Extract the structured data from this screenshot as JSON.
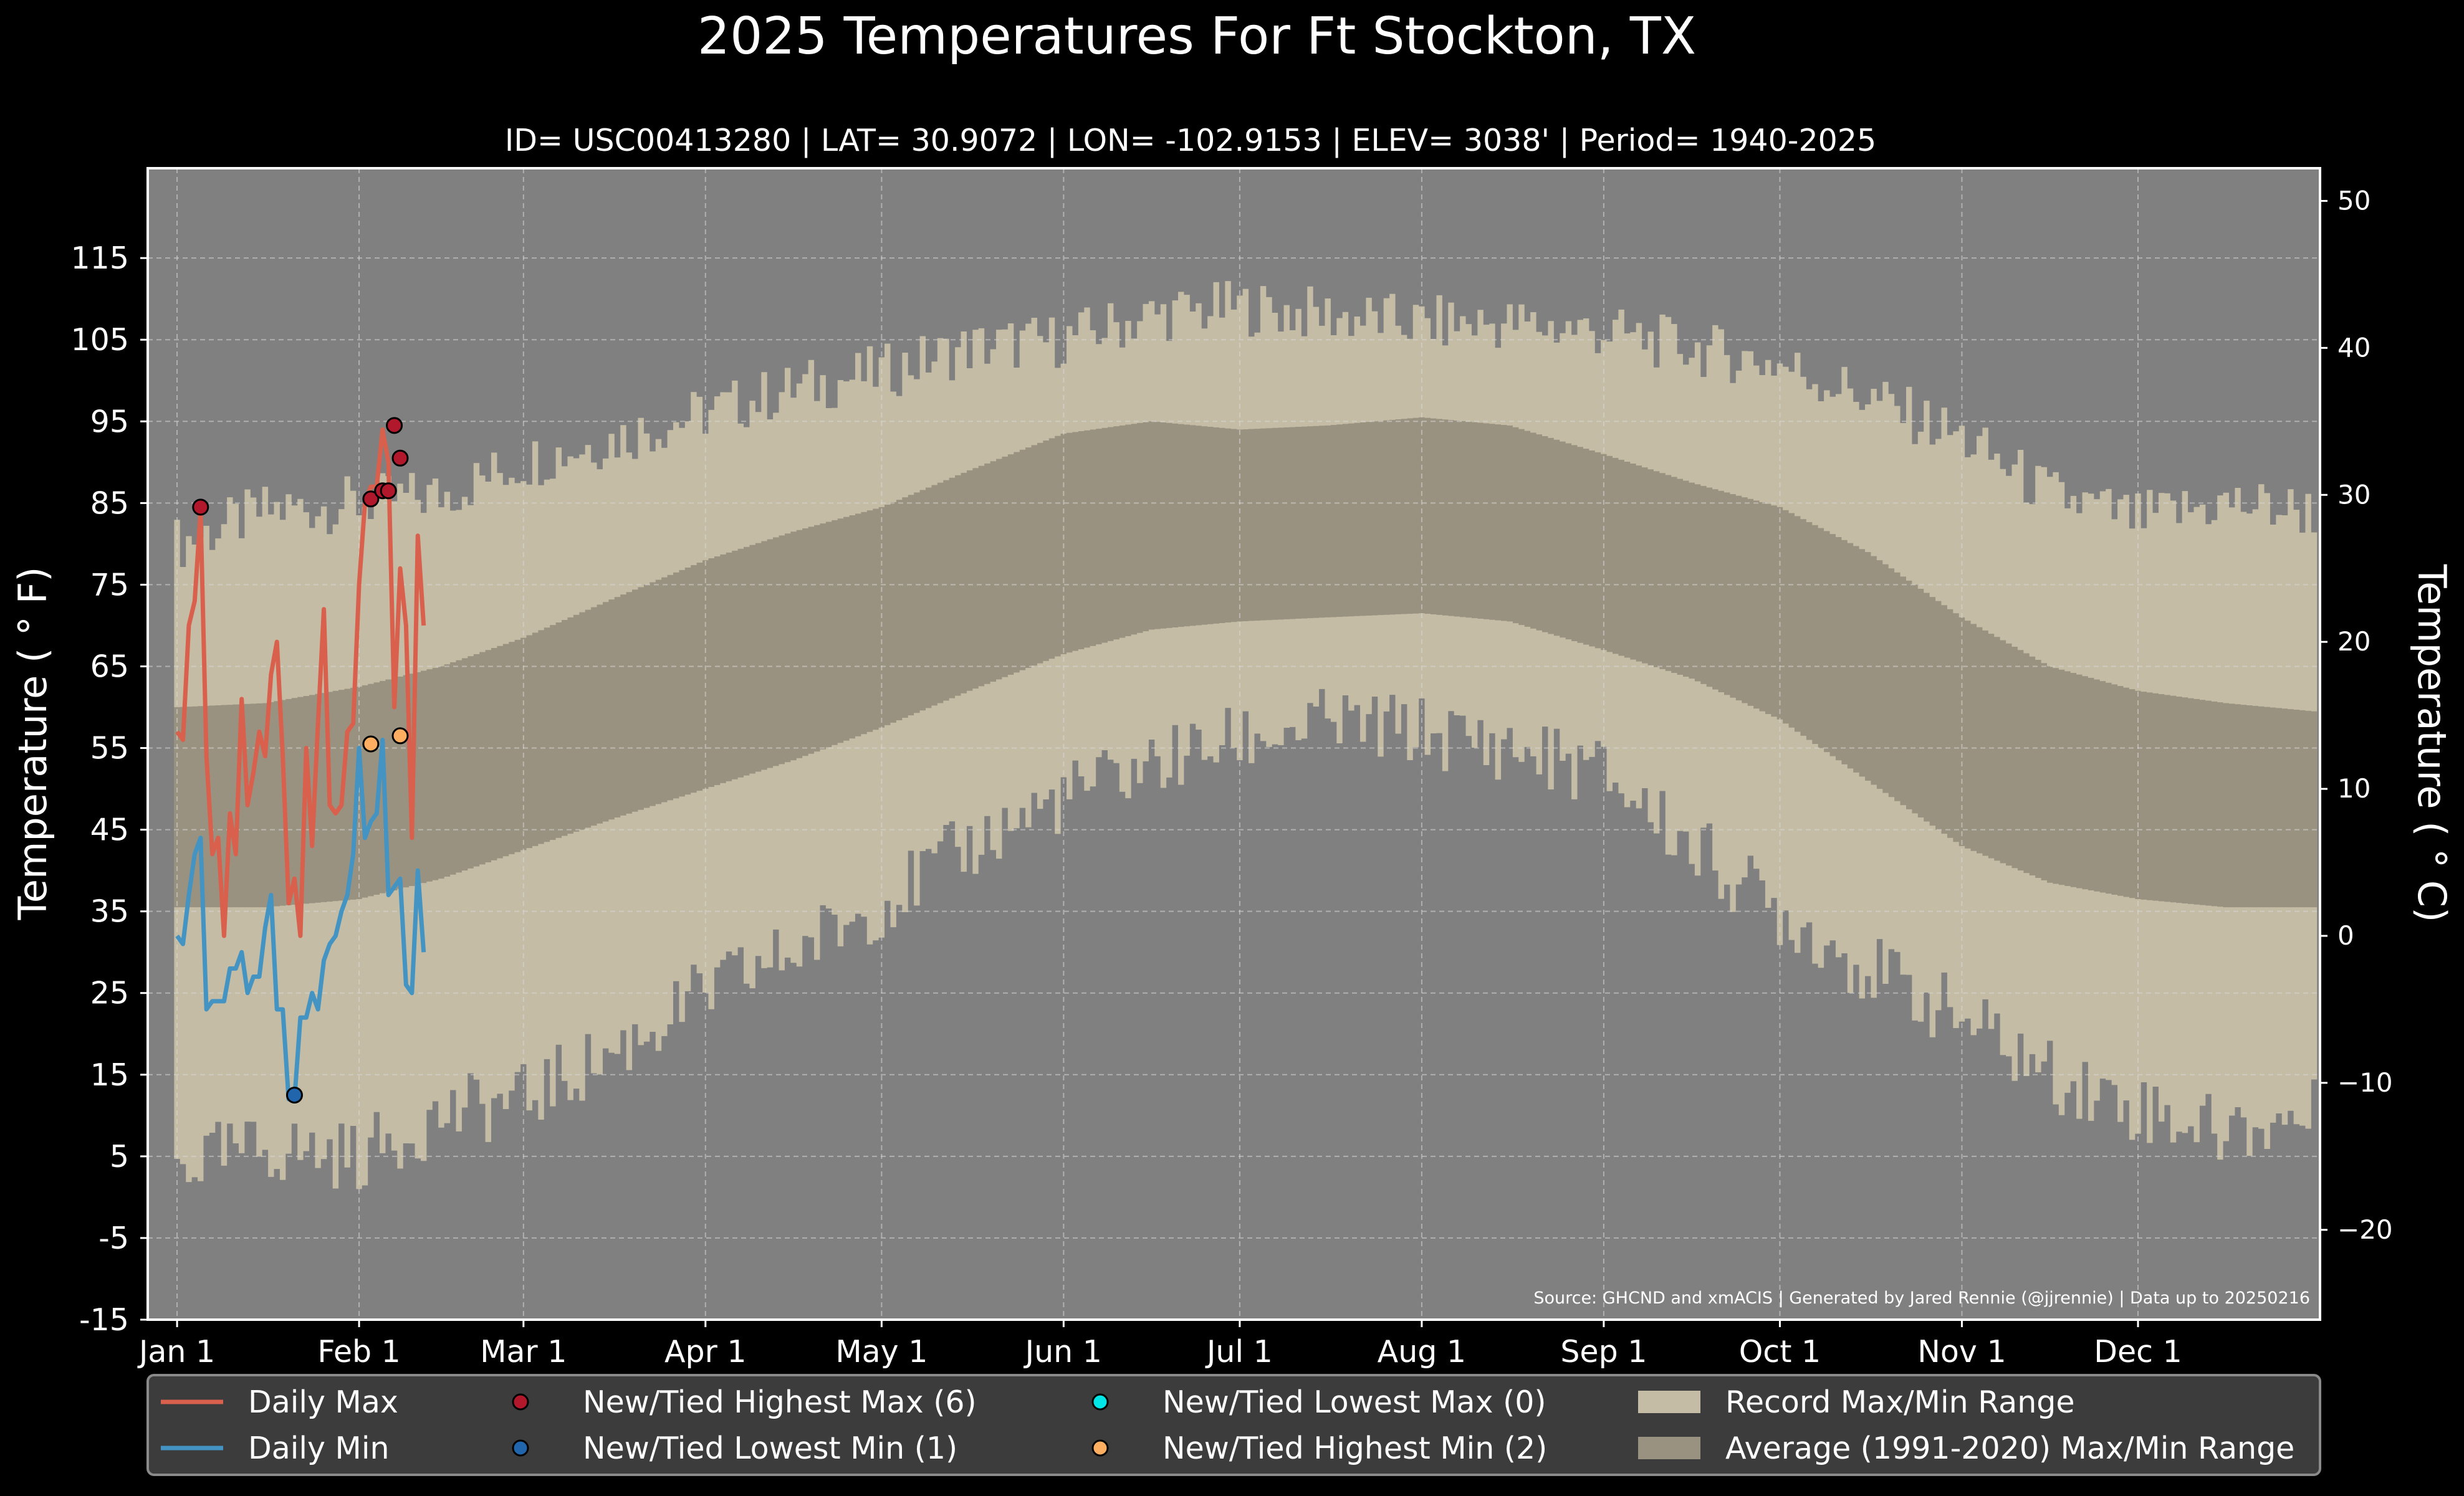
{
  "chart_data": {
    "type": "line",
    "title": "2025 Temperatures For Ft Stockton, TX",
    "subtitle": "ID= USC00413280 | LAT= 30.9072 | LON= -102.9153 | ELEV= 3038' | Period= 1940-2025",
    "ylabel_left": "Temperature ($^\\circ$F)",
    "ylabel_left_display": "Temperature ( ° F)",
    "ylabel_right_display": "Temperature ( ° C)",
    "source_note": "Source: GHCND and xmACIS | Generated by Jared Rennie (@jjrennie) | Data up to 20250216",
    "xlim_day": [
      -5,
      365
    ],
    "ylim_f": [
      -15,
      126
    ],
    "yticks_f": [
      -15,
      -5,
      5,
      15,
      25,
      35,
      45,
      55,
      65,
      75,
      85,
      95,
      105,
      115
    ],
    "yticks_c": [
      -20,
      -10,
      0,
      10,
      20,
      30,
      40,
      50
    ],
    "xticks": [
      {
        "label": "Jan 1",
        "day": 0
      },
      {
        "label": "Feb 1",
        "day": 31
      },
      {
        "label": "Mar 1",
        "day": 59
      },
      {
        "label": "Apr 1",
        "day": 90
      },
      {
        "label": "May 1",
        "day": 120
      },
      {
        "label": "Jun 1",
        "day": 151
      },
      {
        "label": "Jul 1",
        "day": 181
      },
      {
        "label": "Aug 1",
        "day": 212
      },
      {
        "label": "Sep 1",
        "day": 243
      },
      {
        "label": "Oct 1",
        "day": 273
      },
      {
        "label": "Nov 1",
        "day": 304
      },
      {
        "label": "Dec 1",
        "day": 334
      }
    ],
    "grid": true,
    "legend_position": "bottom",
    "colors": {
      "background": "#808080",
      "record_range": "#c4bca4",
      "average_range": "#9a9280",
      "daily_max": "#d9604c",
      "daily_min": "#4393c3",
      "new_high_max": "#b2182b",
      "new_low_min": "#2166ac",
      "new_low_max": "#00e5e5",
      "new_high_min": "#fdae61"
    },
    "record_max_anchors": [
      [
        0,
        80
      ],
      [
        15,
        84
      ],
      [
        31,
        85
      ],
      [
        45,
        86
      ],
      [
        59,
        90
      ],
      [
        75,
        93
      ],
      [
        90,
        96
      ],
      [
        105,
        99
      ],
      [
        120,
        101
      ],
      [
        135,
        104
      ],
      [
        151,
        105
      ],
      [
        166,
        108
      ],
      [
        181,
        109
      ],
      [
        196,
        108
      ],
      [
        212,
        107
      ],
      [
        227,
        107
      ],
      [
        243,
        106
      ],
      [
        258,
        104
      ],
      [
        273,
        102
      ],
      [
        288,
        98
      ],
      [
        304,
        93
      ],
      [
        319,
        86
      ],
      [
        334,
        83
      ],
      [
        349,
        85
      ],
      [
        364,
        84
      ]
    ],
    "record_min_anchors": [
      [
        0,
        4
      ],
      [
        15,
        6
      ],
      [
        31,
        5
      ],
      [
        45,
        10
      ],
      [
        59,
        12
      ],
      [
        75,
        18
      ],
      [
        90,
        25
      ],
      [
        105,
        30
      ],
      [
        120,
        36
      ],
      [
        135,
        43
      ],
      [
        151,
        49
      ],
      [
        166,
        53
      ],
      [
        181,
        56
      ],
      [
        196,
        58
      ],
      [
        212,
        57
      ],
      [
        227,
        55
      ],
      [
        243,
        52
      ],
      [
        258,
        43
      ],
      [
        273,
        35
      ],
      [
        288,
        28
      ],
      [
        304,
        22
      ],
      [
        319,
        15
      ],
      [
        334,
        11
      ],
      [
        349,
        8
      ],
      [
        364,
        10
      ]
    ],
    "average_max_anchors": [
      [
        0,
        60
      ],
      [
        15,
        60.5
      ],
      [
        31,
        62.5
      ],
      [
        45,
        65
      ],
      [
        59,
        68.5
      ],
      [
        75,
        73.5
      ],
      [
        90,
        78
      ],
      [
        105,
        81.5
      ],
      [
        120,
        84.5
      ],
      [
        135,
        89
      ],
      [
        151,
        93.5
      ],
      [
        166,
        95
      ],
      [
        181,
        94
      ],
      [
        196,
        94.5
      ],
      [
        212,
        95.5
      ],
      [
        227,
        94.5
      ],
      [
        243,
        91
      ],
      [
        258,
        87.5
      ],
      [
        273,
        84.5
      ],
      [
        288,
        79
      ],
      [
        304,
        71
      ],
      [
        319,
        65
      ],
      [
        334,
        62
      ],
      [
        349,
        60.5
      ],
      [
        364,
        59.5
      ]
    ],
    "average_min_anchors": [
      [
        0,
        35.5
      ],
      [
        15,
        35.5
      ],
      [
        31,
        36.5
      ],
      [
        45,
        39
      ],
      [
        59,
        42.5
      ],
      [
        75,
        46.5
      ],
      [
        90,
        50
      ],
      [
        105,
        53.5
      ],
      [
        120,
        57.5
      ],
      [
        135,
        62
      ],
      [
        151,
        66.5
      ],
      [
        166,
        69.5
      ],
      [
        181,
        70.5
      ],
      [
        196,
        71
      ],
      [
        212,
        71.5
      ],
      [
        227,
        70.5
      ],
      [
        243,
        67
      ],
      [
        258,
        63.5
      ],
      [
        273,
        58.5
      ],
      [
        288,
        51
      ],
      [
        304,
        43
      ],
      [
        319,
        38.5
      ],
      [
        334,
        36.5
      ],
      [
        349,
        35.5
      ],
      [
        364,
        35.5
      ]
    ],
    "series": [
      {
        "name": "Daily Max",
        "x": [
          0,
          1,
          2,
          3,
          4,
          5,
          6,
          7,
          8,
          9,
          10,
          11,
          12,
          13,
          14,
          15,
          16,
          17,
          18,
          19,
          20,
          21,
          22,
          23,
          24,
          25,
          26,
          27,
          28,
          29,
          30,
          31,
          32,
          33,
          34,
          35,
          36,
          37,
          38,
          39,
          40,
          41,
          42,
          43,
          44,
          45,
          46
        ],
        "y": [
          57,
          56,
          70,
          73,
          84,
          54,
          42,
          44,
          32,
          47,
          42,
          61,
          48,
          52,
          57,
          54,
          64,
          68,
          54,
          36,
          39,
          32,
          55,
          43,
          58,
          72,
          48,
          47,
          48,
          57,
          58,
          75,
          85,
          87,
          87,
          94,
          90,
          60,
          77,
          70,
          44,
          81,
          70,
          null,
          null,
          null,
          null
        ]
      },
      {
        "name": "Daily Min",
        "x": [
          0,
          1,
          2,
          3,
          4,
          5,
          6,
          7,
          8,
          9,
          10,
          11,
          12,
          13,
          14,
          15,
          16,
          17,
          18,
          19,
          20,
          21,
          22,
          23,
          24,
          25,
          26,
          27,
          28,
          29,
          30,
          31,
          32,
          33,
          34,
          35,
          36,
          37,
          38,
          39,
          40,
          41,
          42
        ],
        "y": [
          32,
          31,
          37,
          42,
          44,
          23,
          24,
          24,
          24,
          28,
          28,
          30,
          25,
          27,
          27,
          33,
          37,
          23,
          23,
          12,
          12,
          22,
          22,
          25,
          23,
          29,
          31,
          32,
          35,
          37,
          42,
          55,
          44,
          46,
          47,
          56,
          37,
          38,
          39,
          26,
          25,
          40,
          30
        ]
      }
    ],
    "markers": {
      "new_high_max": [
        {
          "x": 4,
          "y": 84.5
        },
        {
          "x": 33,
          "y": 85.5
        },
        {
          "x": 35,
          "y": 86.5
        },
        {
          "x": 36,
          "y": 86.5
        },
        {
          "x": 37,
          "y": 94.5
        },
        {
          "x": 38,
          "y": 90.5
        }
      ],
      "new_low_min": [
        {
          "x": 20,
          "y": 12.5
        }
      ],
      "new_low_max": [],
      "new_high_min": [
        {
          "x": 33,
          "y": 55.5
        },
        {
          "x": 38,
          "y": 56.5
        }
      ]
    },
    "legend": [
      {
        "key": "daily_max",
        "kind": "line",
        "label": "Daily Max"
      },
      {
        "key": "new_high_max",
        "kind": "dot",
        "label": "New/Tied Highest Max (6)"
      },
      {
        "key": "new_low_max",
        "kind": "dot",
        "label": "New/Tied Lowest Max (0)"
      },
      {
        "key": "record_range",
        "kind": "patch",
        "label": "Record Max/Min Range"
      },
      {
        "key": "daily_min",
        "kind": "line",
        "label": "Daily Min"
      },
      {
        "key": "new_low_min",
        "kind": "dot",
        "label": "New/Tied Lowest Min (1)"
      },
      {
        "key": "new_high_min",
        "kind": "dot",
        "label": "New/Tied Highest Min (2)"
      },
      {
        "key": "average_range",
        "kind": "patch",
        "label": "Average (1991-2020) Max/Min Range"
      }
    ]
  }
}
